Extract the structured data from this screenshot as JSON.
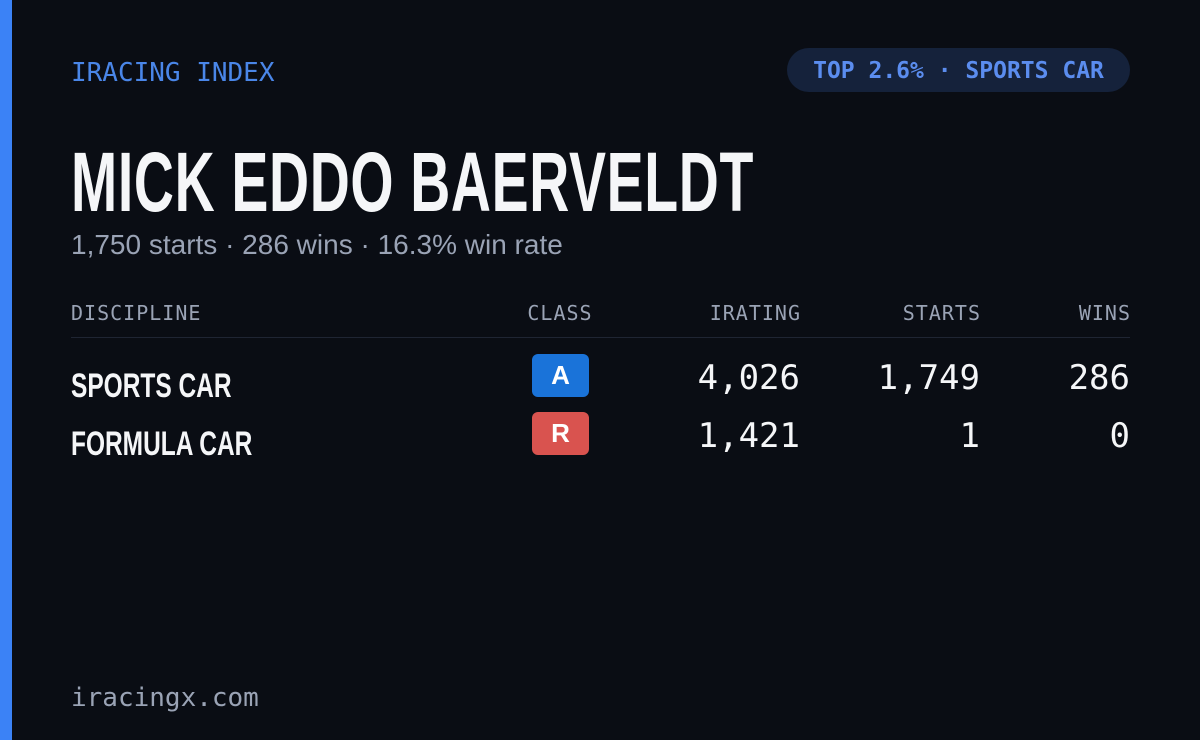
{
  "header": {
    "brand": "IRACING INDEX",
    "badge": "TOP 2.6% · SPORTS CAR"
  },
  "driver": {
    "name": "MICK EDDO BAERVELDT",
    "summary": "1,750 starts · 286 wins · 16.3% win rate"
  },
  "table": {
    "columns": [
      "DISCIPLINE",
      "CLASS",
      "IRATING",
      "STARTS",
      "WINS"
    ],
    "rows": [
      [
        "SPORTS CAR",
        "A",
        "4,026",
        "1,749",
        "286"
      ],
      [
        "FORMULA CAR",
        "R",
        "1,421",
        "1",
        "0"
      ]
    ]
  },
  "footer": {
    "site": "iracingx.com"
  }
}
